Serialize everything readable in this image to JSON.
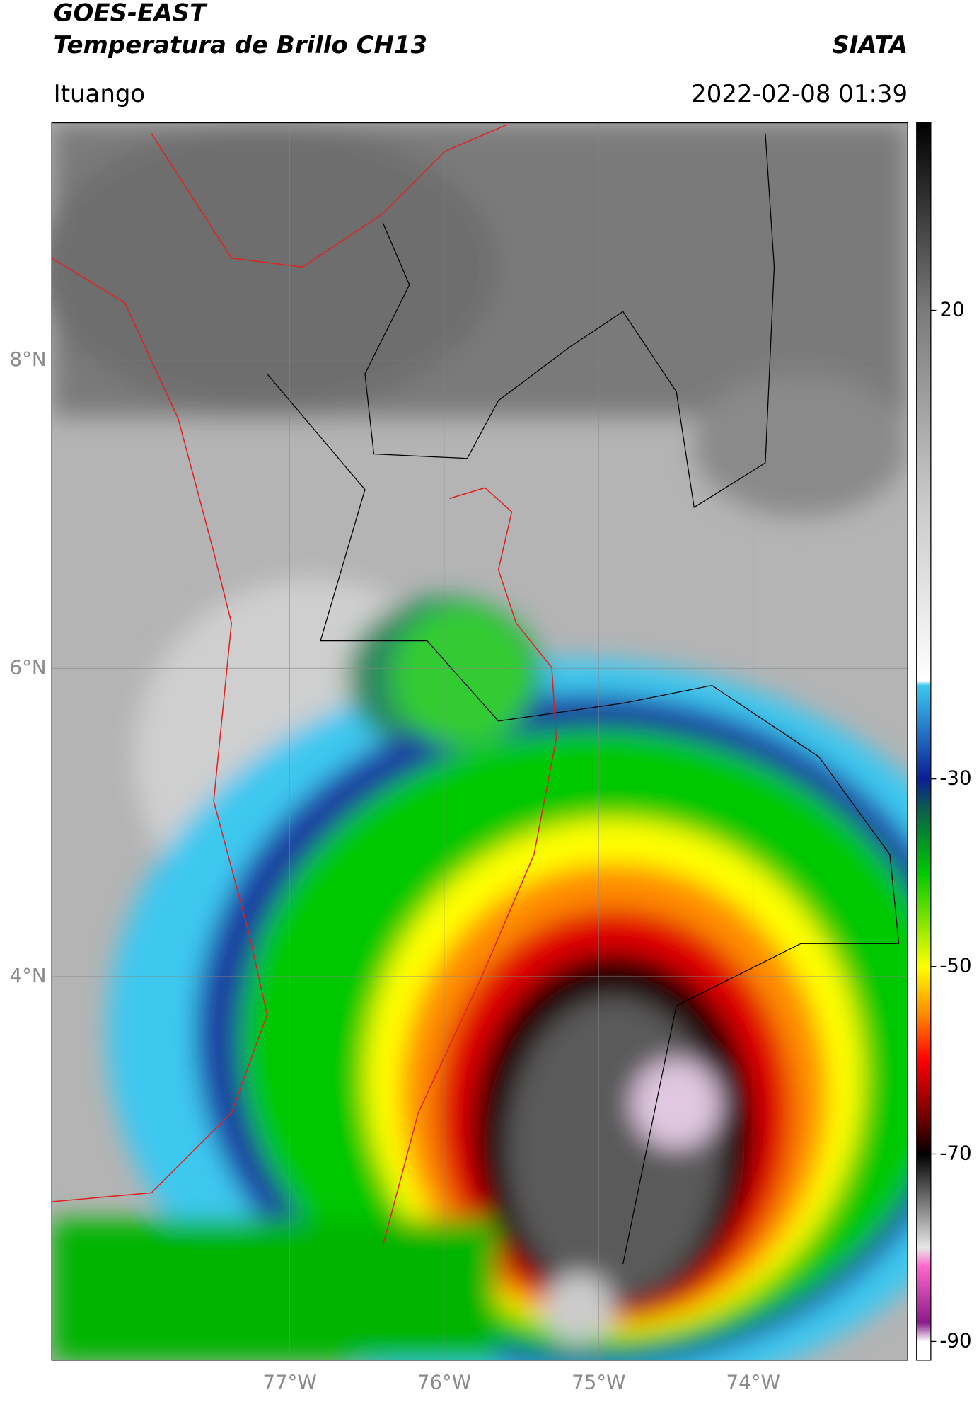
{
  "chart_data": {
    "type": "map",
    "title": "GOES-EAST",
    "subtitle": "Temperatura de Brillo CH13",
    "source": "SIATA",
    "location": "Ituango",
    "datetime": "2022-02-08 01:39",
    "xlim": [
      -78.54,
      -73.0
    ],
    "ylim": [
      1.51,
      9.54
    ],
    "xticks": [
      {
        "value": -77,
        "label": "77°W"
      },
      {
        "value": -76,
        "label": "76°W"
      },
      {
        "value": -75,
        "label": "75°W"
      },
      {
        "value": -74,
        "label": "74°W"
      }
    ],
    "yticks": [
      {
        "value": 4,
        "label": "4°N"
      },
      {
        "value": 6,
        "label": "6°N"
      },
      {
        "value": 8,
        "label": "8°N"
      }
    ],
    "grid": true,
    "colorbar": {
      "clim": [
        -92,
        40
      ],
      "ticks": [
        -90,
        -70,
        -50,
        -30,
        20
      ],
      "stops": [
        {
          "value": -92,
          "color": "#ffffff"
        },
        {
          "value": -90,
          "color": "#ffffff"
        },
        {
          "value": -88,
          "color": "#8a1a8a"
        },
        {
          "value": -82,
          "color": "#ff66cc"
        },
        {
          "value": -80,
          "color": "#e8e8e8"
        },
        {
          "value": -70,
          "color": "#000000"
        },
        {
          "value": -67,
          "color": "#5a0000"
        },
        {
          "value": -60,
          "color": "#ff0000"
        },
        {
          "value": -55,
          "color": "#ff8c00"
        },
        {
          "value": -50,
          "color": "#ffff00"
        },
        {
          "value": -40,
          "color": "#00c800"
        },
        {
          "value": -33,
          "color": "#0a5a50"
        },
        {
          "value": -30,
          "color": "#0a1e96"
        },
        {
          "value": -20,
          "color": "#3cc8f0"
        },
        {
          "value": -19.5,
          "color": "#ffffff"
        },
        {
          "value": 0,
          "color": "#c8c8c8"
        },
        {
          "value": 20,
          "color": "#7a7a7a"
        },
        {
          "value": 40,
          "color": "#000000"
        }
      ]
    }
  }
}
